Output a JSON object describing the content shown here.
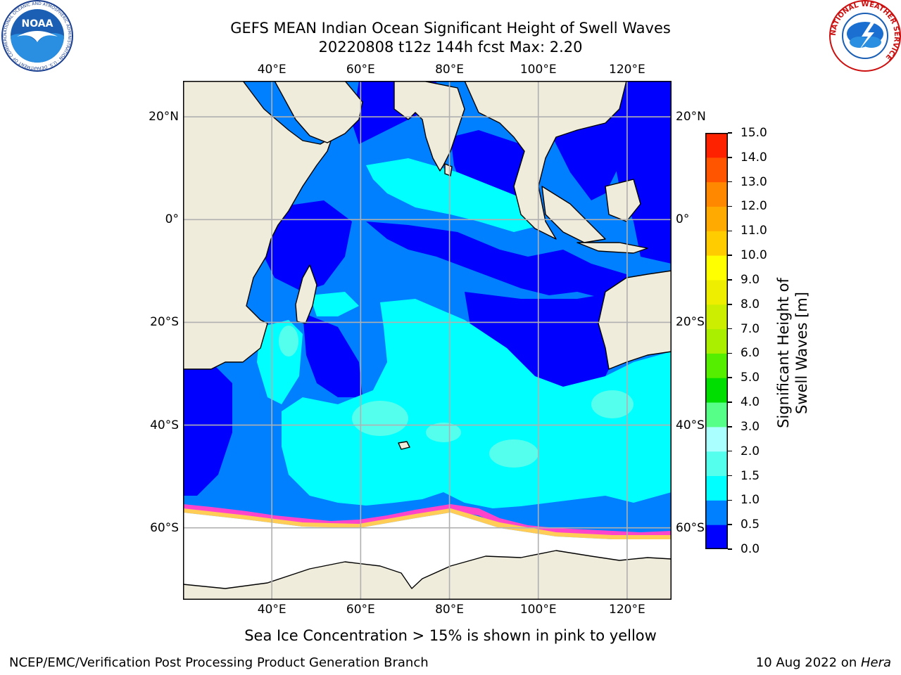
{
  "header": {
    "title_line1": "GEFS MEAN Indian Ocean Significant Height of Swell Waves",
    "title_line2": "20220808 t12z 144h fcst   Max: 2.20"
  },
  "logos": {
    "left": {
      "text": "NOAA",
      "ring_text": "NATIONAL OCEANIC AND ATMOSPHERIC ADMINISTRATION · U.S. DEPARTMENT OF COMMERCE"
    },
    "right": {
      "ring_text": "NATIONAL WEATHER SERVICE"
    }
  },
  "map": {
    "lon_ticks": [
      "40°E",
      "60°E",
      "80°E",
      "100°E",
      "120°E"
    ],
    "lat_ticks": [
      "20°N",
      "0°",
      "20°S",
      "40°S",
      "60°S"
    ],
    "lon_values": [
      40,
      60,
      80,
      100,
      120
    ],
    "lat_values": [
      20,
      0,
      -20,
      -40,
      -60
    ],
    "extent": {
      "lon": [
        20,
        130
      ],
      "lat": [
        -74,
        27
      ]
    },
    "colors": {
      "land": "#efecdc",
      "grid": "#b0b0b0",
      "ice": "#ffffff"
    }
  },
  "colorbar": {
    "label": "Significant Height of Swell Waves [m]",
    "ticks": [
      "0.0",
      "0.5",
      "1.0",
      "1.5",
      "2.0",
      "3.0",
      "4.0",
      "5.0",
      "6.0",
      "7.0",
      "8.0",
      "9.0",
      "10.0",
      "11.0",
      "12.0",
      "13.0",
      "14.0",
      "15.0"
    ],
    "colors": [
      "#0000ff",
      "#0080ff",
      "#00ffff",
      "#55ffee",
      "#aaffff",
      "#55ff88",
      "#00dd00",
      "#55ee00",
      "#aaee00",
      "#ccee00",
      "#eeee00",
      "#ffff00",
      "#ffcc00",
      "#ffaa00",
      "#ff8800",
      "#ff5500",
      "#ff2200",
      "#ff0000"
    ]
  },
  "note": "Sea Ice Concentration > 15% is shown in pink to yellow",
  "footer": {
    "left": "NCEP/EMC/Verification Post Processing Product Generation Branch",
    "right_date": "10 Aug 2022 on ",
    "right_machine": "Hera"
  }
}
